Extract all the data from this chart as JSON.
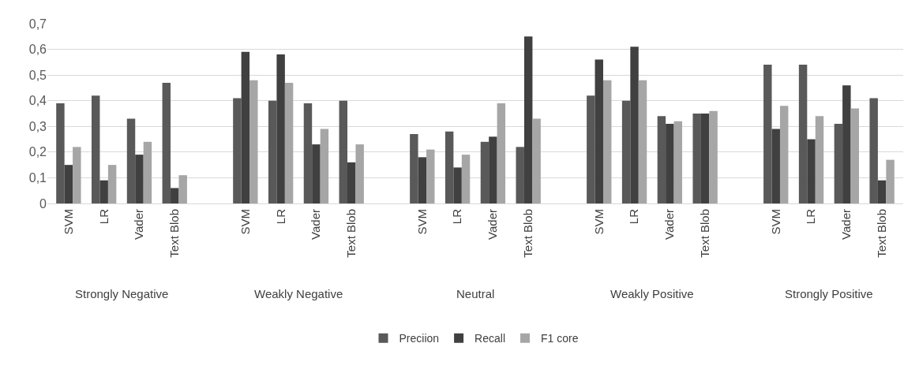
{
  "chart_data": {
    "type": "bar",
    "categories": [
      "SVM",
      "LR",
      "Vader",
      "Text Blob",
      "SVM",
      "LR",
      "Vader",
      "Text Blob",
      "SVM",
      "LR",
      "Vader",
      "Text Blob",
      "SVM",
      "LR",
      "Vader",
      "Text Blob",
      "SVM",
      "LR",
      "Vader",
      "Text Blob"
    ],
    "series": [
      {
        "name": "Preciion",
        "color": "#595959",
        "values": [
          0.39,
          0.42,
          0.33,
          0.47,
          0.41,
          0.4,
          0.39,
          0.4,
          0.27,
          0.28,
          0.24,
          0.22,
          0.42,
          0.4,
          0.34,
          0.35,
          0.54,
          0.54,
          0.31,
          0.41
        ]
      },
      {
        "name": "Recall",
        "color": "#404040",
        "values": [
          0.15,
          0.09,
          0.19,
          0.06,
          0.59,
          0.58,
          0.23,
          0.16,
          0.18,
          0.14,
          0.26,
          0.65,
          0.56,
          0.61,
          0.31,
          0.35,
          0.29,
          0.25,
          0.46,
          0.09
        ]
      },
      {
        "name": "F1 core",
        "color": "#a6a6a6",
        "values": [
          0.22,
          0.15,
          0.24,
          0.11,
          0.48,
          0.47,
          0.29,
          0.23,
          0.21,
          0.19,
          0.39,
          0.33,
          0.48,
          0.48,
          0.32,
          0.36,
          0.38,
          0.34,
          0.37,
          0.17
        ]
      }
    ],
    "annotations": [
      "Strongly Negative",
      "Weakly Negative",
      "Neutral",
      "Weakly Positive",
      "Strongly Positive"
    ],
    "ylim": [
      0,
      0.7
    ],
    "yticks": [
      0,
      {
        "value": 0.1,
        "label": "0,1"
      },
      {
        "value": 0.2,
        "label": "0,2"
      },
      {
        "value": 0.3,
        "label": "0,3"
      },
      {
        "value": 0.4,
        "label": "0,4"
      },
      {
        "value": 0.5,
        "label": "0,5"
      },
      {
        "value": 0.6,
        "label": "0,6"
      },
      {
        "value": 0.7,
        "label": "0,7"
      }
    ],
    "grid": "y",
    "legend": "bottom"
  }
}
